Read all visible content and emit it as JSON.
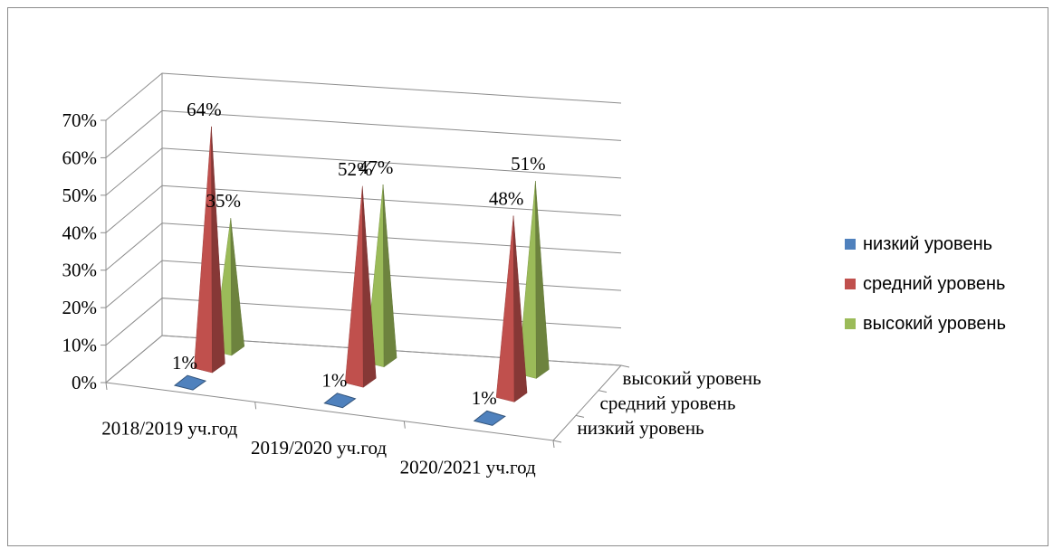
{
  "chart_data": {
    "type": "bar",
    "subtype": "3d-pyramid",
    "title": "",
    "categories": [
      "2018/2019 уч.год",
      "2019/2020 уч.год",
      "2020/2021 уч.год"
    ],
    "series": [
      {
        "name": "низкий уровень",
        "values": [
          1,
          1,
          1
        ],
        "labels": [
          "1%",
          "1%",
          "1%"
        ],
        "color": "#4f81bd"
      },
      {
        "name": "средний уровень",
        "values": [
          64,
          52,
          48
        ],
        "labels": [
          "64%",
          "52%",
          "48%"
        ],
        "color": "#c0504d"
      },
      {
        "name": "высокий уровень",
        "values": [
          35,
          47,
          51
        ],
        "labels": [
          "35%",
          "47%",
          "51%"
        ],
        "color": "#9bbb59"
      }
    ],
    "depth_axis_labels": [
      "высокий уровень",
      "средний уровень",
      "низкий уровень"
    ],
    "y_ticks": [
      "0%",
      "10%",
      "20%",
      "30%",
      "40%",
      "50%",
      "60%",
      "70%"
    ],
    "ylim": [
      0,
      70
    ],
    "y_unit": "%",
    "grid": true,
    "legend_position": "right"
  }
}
